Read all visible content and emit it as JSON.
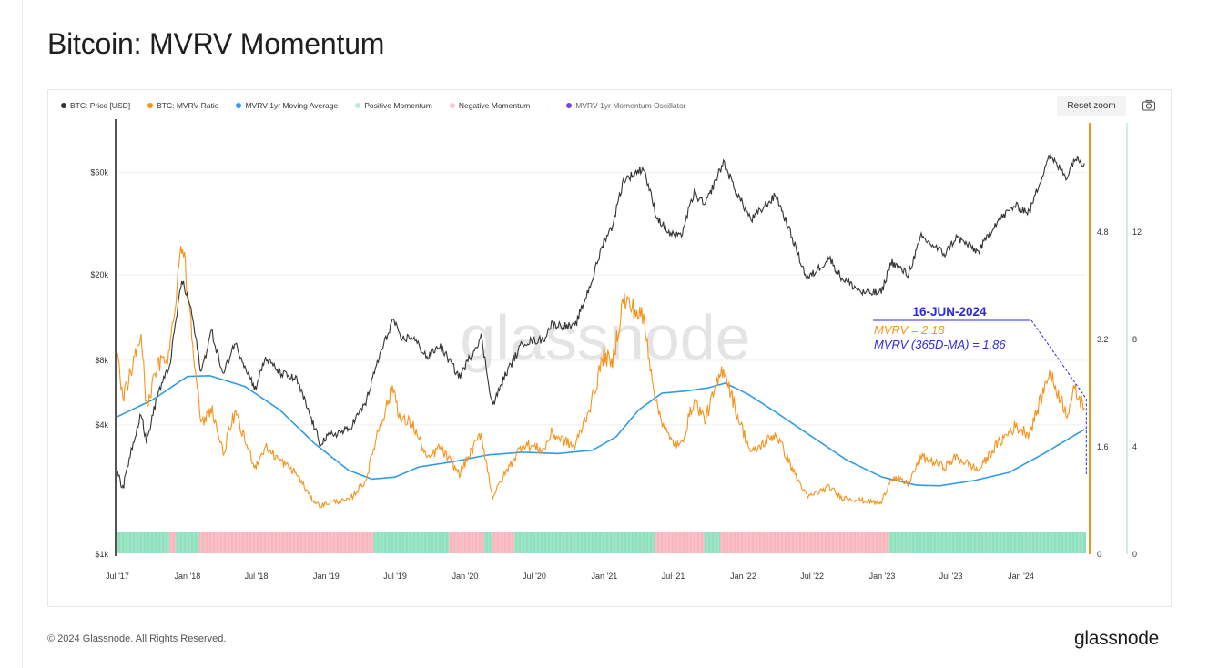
{
  "page": {
    "title": "Bitcoin: MVRV Momentum",
    "copyright": "© 2024 Glassnode. All Rights Reserved.",
    "logo": "glassnode"
  },
  "toolbar": {
    "reset_zoom_label": "Reset zoom",
    "camera_icon": "camera-icon"
  },
  "legend": [
    {
      "label": "BTC: Price [USD]",
      "color": "#333333"
    },
    {
      "label": "BTC: MVRV Ratio",
      "color": "#f7931a"
    },
    {
      "label": "MVRV 1yr Moving Average",
      "color": "#2f9be6"
    },
    {
      "label": "Positive Momentum",
      "color": "#bfead6"
    },
    {
      "label": "Negative Momentum",
      "color": "#f7c9cd"
    },
    {
      "label": "MVRV 1yr Momentum Oscillator",
      "color": "#7b3fe4",
      "hidden": true
    }
  ],
  "chart_data": {
    "type": "line",
    "watermark": "glassnode",
    "colors": {
      "price": "#333333",
      "mvrv": "#f7931a",
      "ma": "#2f9be6",
      "positive": "#8fe0bd",
      "negative": "#f7b7bd",
      "annotation_blue": "#2a2ae0",
      "annotation_orange": "#f7931a"
    },
    "x_axis": {
      "range": [
        "2017-07-01",
        "2024-06-20"
      ],
      "ticks": [
        {
          "date": "2017-07-01",
          "label": "Jul '17"
        },
        {
          "date": "2018-01-01",
          "label": "Jan '18"
        },
        {
          "date": "2018-07-01",
          "label": "Jul '18"
        },
        {
          "date": "2019-01-01",
          "label": "Jan '19"
        },
        {
          "date": "2019-07-01",
          "label": "Jul '19"
        },
        {
          "date": "2020-01-01",
          "label": "Jan '20"
        },
        {
          "date": "2020-07-01",
          "label": "Jul '20"
        },
        {
          "date": "2021-01-01",
          "label": "Jan '21"
        },
        {
          "date": "2021-07-01",
          "label": "Jul '21"
        },
        {
          "date": "2022-01-01",
          "label": "Jan '22"
        },
        {
          "date": "2022-07-01",
          "label": "Jul '22"
        },
        {
          "date": "2023-01-01",
          "label": "Jan '23"
        },
        {
          "date": "2023-07-01",
          "label": "Jul '23"
        },
        {
          "date": "2024-01-01",
          "label": "Jan '24"
        }
      ]
    },
    "y_axis_price": {
      "scale": "log",
      "range": [
        1000,
        100000
      ],
      "ticks": [
        {
          "value": 1000,
          "label": "$1k"
        },
        {
          "value": 4000,
          "label": "$4k"
        },
        {
          "value": 8000,
          "label": "$8k"
        },
        {
          "value": 20000,
          "label": "$20k"
        },
        {
          "value": 60000,
          "label": "$60k"
        }
      ]
    },
    "y_axis_mvrv": {
      "scale": "linear",
      "range": [
        0,
        6.4
      ],
      "ticks": [
        {
          "value": 0,
          "label": "0"
        },
        {
          "value": 1.6,
          "label": "1.6"
        },
        {
          "value": 3.2,
          "label": "3.2"
        },
        {
          "value": 4.8,
          "label": "4.8"
        }
      ]
    },
    "y_axis_oscillator": {
      "scale": "linear",
      "range": [
        0,
        16
      ],
      "ticks": [
        {
          "value": 0,
          "label": "0"
        },
        {
          "value": 4,
          "label": "4"
        },
        {
          "value": 8,
          "label": "8"
        },
        {
          "value": 12,
          "label": "12"
        }
      ]
    },
    "series": [
      {
        "key": "price",
        "values": [
          [
            "2017-07-01",
            2500
          ],
          [
            "2017-07-15",
            2000
          ],
          [
            "2017-08-01",
            2800
          ],
          [
            "2017-09-01",
            4600
          ],
          [
            "2017-09-15",
            3300
          ],
          [
            "2017-10-15",
            5600
          ],
          [
            "2017-11-15",
            7500
          ],
          [
            "2017-12-17",
            19000
          ],
          [
            "2018-01-10",
            14000
          ],
          [
            "2018-02-06",
            7000
          ],
          [
            "2018-03-05",
            11000
          ],
          [
            "2018-04-05",
            6800
          ],
          [
            "2018-05-05",
            9700
          ],
          [
            "2018-06-28",
            5900
          ],
          [
            "2018-07-25",
            8200
          ],
          [
            "2018-09-01",
            7000
          ],
          [
            "2018-10-15",
            6500
          ],
          [
            "2018-11-20",
            4400
          ],
          [
            "2018-12-15",
            3300
          ],
          [
            "2019-01-15",
            3600
          ],
          [
            "2019-03-01",
            3800
          ],
          [
            "2019-04-15",
            5100
          ],
          [
            "2019-05-15",
            7800
          ],
          [
            "2019-06-26",
            12500
          ],
          [
            "2019-07-15",
            10000
          ],
          [
            "2019-08-15",
            10300
          ],
          [
            "2019-09-25",
            8200
          ],
          [
            "2019-10-26",
            9400
          ],
          [
            "2019-12-17",
            6700
          ],
          [
            "2020-02-12",
            10300
          ],
          [
            "2020-03-13",
            4900
          ],
          [
            "2020-04-15",
            6800
          ],
          [
            "2020-06-01",
            9700
          ],
          [
            "2020-07-25",
            10000
          ],
          [
            "2020-08-15",
            11800
          ],
          [
            "2020-10-15",
            11400
          ],
          [
            "2020-11-30",
            19000
          ],
          [
            "2020-12-31",
            29000
          ],
          [
            "2021-01-20",
            33000
          ],
          [
            "2021-02-20",
            55000
          ],
          [
            "2021-04-14",
            63000
          ],
          [
            "2021-05-19",
            37000
          ],
          [
            "2021-06-22",
            31000
          ],
          [
            "2021-07-20",
            30000
          ],
          [
            "2021-08-25",
            48000
          ],
          [
            "2021-09-22",
            42000
          ],
          [
            "2021-11-10",
            67000
          ],
          [
            "2021-12-15",
            48000
          ],
          [
            "2022-01-22",
            36000
          ],
          [
            "2022-03-28",
            47000
          ],
          [
            "2022-05-12",
            29000
          ],
          [
            "2022-06-18",
            19000
          ],
          [
            "2022-08-15",
            24000
          ],
          [
            "2022-09-15",
            19500
          ],
          [
            "2022-11-10",
            16500
          ],
          [
            "2022-12-30",
            16500
          ],
          [
            "2023-01-25",
            23000
          ],
          [
            "2023-03-10",
            20000
          ],
          [
            "2023-04-14",
            30000
          ],
          [
            "2023-06-15",
            25000
          ],
          [
            "2023-07-15",
            30000
          ],
          [
            "2023-09-11",
            25500
          ],
          [
            "2023-10-25",
            34500
          ],
          [
            "2023-12-15",
            42000
          ],
          [
            "2024-01-23",
            39000
          ],
          [
            "2024-02-28",
            60000
          ],
          [
            "2024-03-14",
            72000
          ],
          [
            "2024-05-01",
            57000
          ],
          [
            "2024-05-21",
            70000
          ],
          [
            "2024-06-16",
            66000
          ]
        ]
      },
      {
        "key": "mvrv",
        "values": [
          [
            "2017-07-01",
            2.9
          ],
          [
            "2017-07-15",
            2.3
          ],
          [
            "2017-08-15",
            2.9
          ],
          [
            "2017-09-01",
            3.3
          ],
          [
            "2017-09-15",
            2.2
          ],
          [
            "2017-10-15",
            2.8
          ],
          [
            "2017-11-15",
            3.0
          ],
          [
            "2017-12-17",
            4.7
          ],
          [
            "2018-01-10",
            3.5
          ],
          [
            "2018-02-06",
            1.9
          ],
          [
            "2018-03-05",
            2.2
          ],
          [
            "2018-04-05",
            1.5
          ],
          [
            "2018-05-05",
            2.1
          ],
          [
            "2018-06-28",
            1.3
          ],
          [
            "2018-07-25",
            1.6
          ],
          [
            "2018-09-01",
            1.4
          ],
          [
            "2018-10-15",
            1.2
          ],
          [
            "2018-11-20",
            0.85
          ],
          [
            "2018-12-15",
            0.72
          ],
          [
            "2019-01-15",
            0.78
          ],
          [
            "2019-03-01",
            0.8
          ],
          [
            "2019-04-15",
            1.1
          ],
          [
            "2019-05-15",
            1.8
          ],
          [
            "2019-06-26",
            2.5
          ],
          [
            "2019-07-15",
            2.0
          ],
          [
            "2019-08-15",
            1.95
          ],
          [
            "2019-09-25",
            1.4
          ],
          [
            "2019-10-26",
            1.6
          ],
          [
            "2019-12-17",
            1.2
          ],
          [
            "2020-02-12",
            1.8
          ],
          [
            "2020-03-13",
            0.85
          ],
          [
            "2020-04-15",
            1.2
          ],
          [
            "2020-06-01",
            1.65
          ],
          [
            "2020-07-25",
            1.55
          ],
          [
            "2020-08-15",
            1.8
          ],
          [
            "2020-10-15",
            1.6
          ],
          [
            "2020-11-30",
            2.3
          ],
          [
            "2020-12-31",
            3.0
          ],
          [
            "2021-01-20",
            2.8
          ],
          [
            "2021-02-20",
            3.8
          ],
          [
            "2021-04-14",
            3.5
          ],
          [
            "2021-05-19",
            2.2
          ],
          [
            "2021-06-22",
            1.7
          ],
          [
            "2021-07-20",
            1.6
          ],
          [
            "2021-08-25",
            2.3
          ],
          [
            "2021-09-22",
            2.0
          ],
          [
            "2021-11-10",
            2.8
          ],
          [
            "2021-12-15",
            2.1
          ],
          [
            "2022-01-22",
            1.5
          ],
          [
            "2022-03-28",
            1.8
          ],
          [
            "2022-05-12",
            1.25
          ],
          [
            "2022-06-18",
            0.85
          ],
          [
            "2022-08-15",
            1.0
          ],
          [
            "2022-09-15",
            0.85
          ],
          [
            "2022-11-10",
            0.8
          ],
          [
            "2022-12-30",
            0.76
          ],
          [
            "2023-01-25",
            1.15
          ],
          [
            "2023-03-10",
            1.05
          ],
          [
            "2023-04-14",
            1.45
          ],
          [
            "2023-06-15",
            1.3
          ],
          [
            "2023-07-15",
            1.45
          ],
          [
            "2023-09-11",
            1.25
          ],
          [
            "2023-10-25",
            1.6
          ],
          [
            "2023-12-15",
            1.9
          ],
          [
            "2024-01-23",
            1.8
          ],
          [
            "2024-02-28",
            2.4
          ],
          [
            "2024-03-14",
            2.72
          ],
          [
            "2024-05-01",
            2.1
          ],
          [
            "2024-05-21",
            2.45
          ],
          [
            "2024-06-16",
            2.18
          ]
        ]
      },
      {
        "key": "ma",
        "values": [
          [
            "2017-07-01",
            2.05
          ],
          [
            "2017-10-01",
            2.3
          ],
          [
            "2018-01-01",
            2.65
          ],
          [
            "2018-03-01",
            2.66
          ],
          [
            "2018-06-01",
            2.5
          ],
          [
            "2018-09-01",
            2.15
          ],
          [
            "2018-12-01",
            1.65
          ],
          [
            "2019-03-01",
            1.25
          ],
          [
            "2019-05-01",
            1.12
          ],
          [
            "2019-07-01",
            1.15
          ],
          [
            "2019-09-01",
            1.3
          ],
          [
            "2019-12-01",
            1.38
          ],
          [
            "2020-03-01",
            1.48
          ],
          [
            "2020-06-01",
            1.52
          ],
          [
            "2020-09-01",
            1.5
          ],
          [
            "2020-12-01",
            1.55
          ],
          [
            "2021-02-01",
            1.75
          ],
          [
            "2021-04-01",
            2.15
          ],
          [
            "2021-06-01",
            2.4
          ],
          [
            "2021-08-01",
            2.43
          ],
          [
            "2021-10-01",
            2.48
          ],
          [
            "2021-11-15",
            2.55
          ],
          [
            "2022-01-15",
            2.38
          ],
          [
            "2022-04-01",
            2.1
          ],
          [
            "2022-07-01",
            1.75
          ],
          [
            "2022-10-01",
            1.4
          ],
          [
            "2023-01-01",
            1.15
          ],
          [
            "2023-04-01",
            1.03
          ],
          [
            "2023-06-01",
            1.02
          ],
          [
            "2023-09-01",
            1.1
          ],
          [
            "2023-12-01",
            1.22
          ],
          [
            "2024-03-01",
            1.5
          ],
          [
            "2024-06-16",
            1.86
          ]
        ]
      }
    ],
    "momentum_periods": [
      {
        "start": "2017-07-01",
        "end": "2017-11-15",
        "state": "positive"
      },
      {
        "start": "2017-11-15",
        "end": "2017-12-01",
        "state": "negative"
      },
      {
        "start": "2017-12-01",
        "end": "2018-02-01",
        "state": "positive"
      },
      {
        "start": "2018-02-01",
        "end": "2019-05-05",
        "state": "negative"
      },
      {
        "start": "2019-05-05",
        "end": "2019-11-20",
        "state": "positive"
      },
      {
        "start": "2019-11-20",
        "end": "2020-02-20",
        "state": "negative"
      },
      {
        "start": "2020-02-20",
        "end": "2020-03-10",
        "state": "positive"
      },
      {
        "start": "2020-03-10",
        "end": "2020-05-10",
        "state": "negative"
      },
      {
        "start": "2020-05-10",
        "end": "2021-05-15",
        "state": "positive"
      },
      {
        "start": "2021-05-15",
        "end": "2021-09-20",
        "state": "negative"
      },
      {
        "start": "2021-09-20",
        "end": "2021-11-01",
        "state": "positive"
      },
      {
        "start": "2021-11-01",
        "end": "2023-01-20",
        "state": "negative"
      },
      {
        "start": "2023-01-20",
        "end": "2024-06-20",
        "state": "positive"
      }
    ],
    "annotation": {
      "date": "2024-06-16",
      "date_label": "16-JUN-2024",
      "mvrv_label": "MVRV = 2.18",
      "ma_label": "MVRV (365D-MA) = 1.86",
      "mvrv_value": 2.18,
      "ma_value": 1.86
    }
  }
}
